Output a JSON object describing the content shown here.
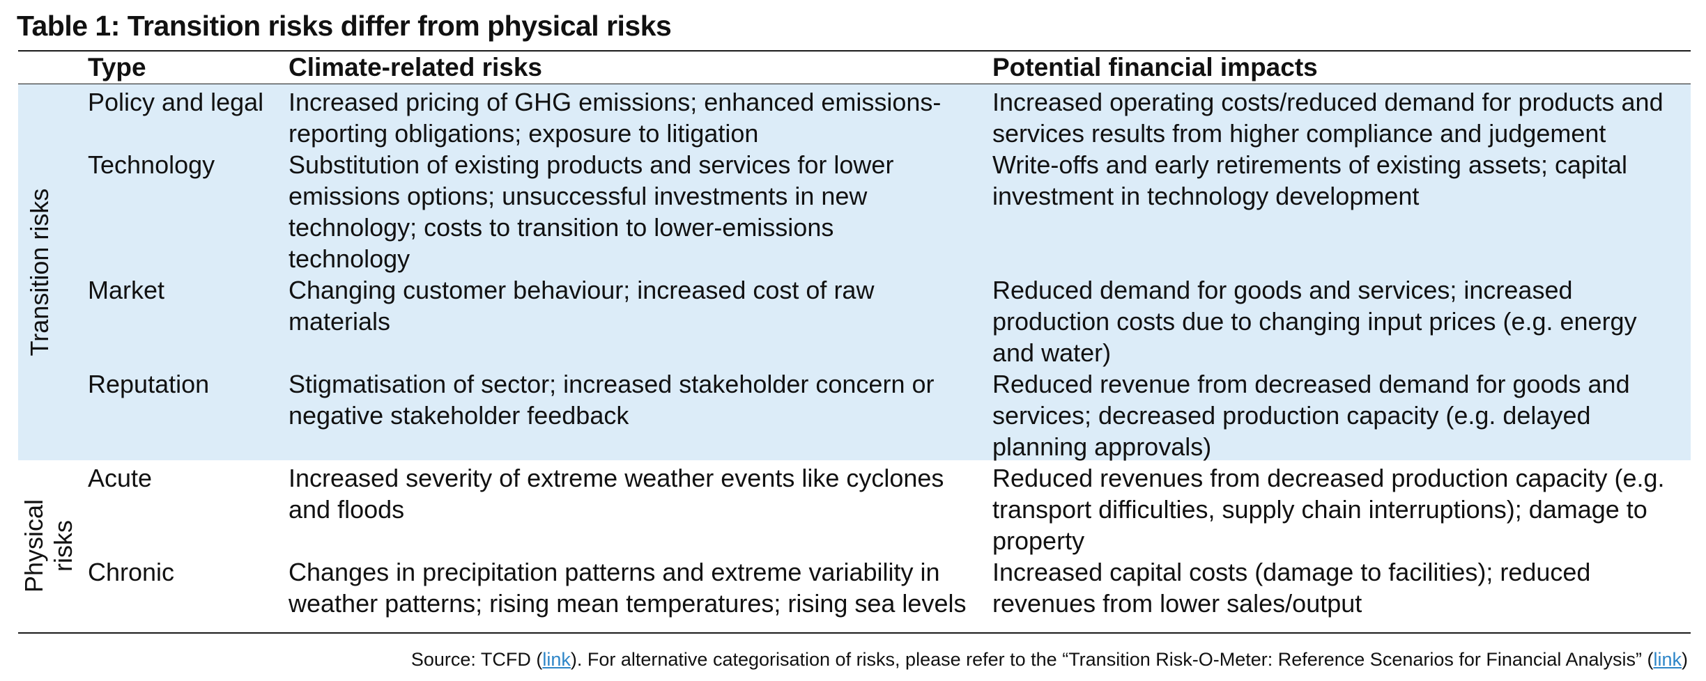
{
  "title": "Table 1: Transition risks differ from physical risks",
  "columns": {
    "type": "Type",
    "risks": "Climate-related risks",
    "impacts": "Potential financial impacts"
  },
  "groups": {
    "transition": "Transition risks",
    "physical_line1": "Physical",
    "physical_line2": "risks"
  },
  "rows": [
    {
      "type": "Policy and legal",
      "risks": [
        "Increased pricing of GHG emissions; enhanced emissions-",
        "reporting obligations; exposure to litigation"
      ],
      "impacts": [
        "Increased operating costs/reduced demand for products and",
        "services results from higher compliance and judgement"
      ]
    },
    {
      "type": "Technology",
      "risks": [
        "Substitution of existing products and services for lower",
        "emissions options; unsuccessful investments in new",
        "technology; costs to transition to lower-emissions",
        "technology"
      ],
      "impacts": [
        "Write-offs and early retirements of existing assets; capital",
        "investment in technology development"
      ]
    },
    {
      "type": "Market",
      "risks": [
        "Changing customer behaviour; increased cost of raw",
        "materials"
      ],
      "impacts": [
        "Reduced demand for goods and services; increased",
        "production costs due to changing input prices (e.g. energy",
        "and water)"
      ]
    },
    {
      "type": "Reputation",
      "risks": [
        "Stigmatisation of sector; increased stakeholder concern or",
        "negative stakeholder feedback"
      ],
      "impacts": [
        "Reduced revenue from decreased demand for goods and",
        "services; decreased production capacity (e.g. delayed",
        "planning approvals)"
      ]
    },
    {
      "type": "Acute",
      "risks": [
        "Increased severity of extreme weather events like cyclones",
        "and floods"
      ],
      "impacts": [
        "Reduced revenues from decreased production capacity (e.g.",
        "transport difficulties, supply chain interruptions); damage to",
        "property"
      ]
    },
    {
      "type": "Chronic",
      "risks": [
        "Changes in precipitation patterns and extreme variability in",
        "weather patterns; rising mean temperatures; rising sea levels"
      ],
      "impacts": [
        "Increased capital costs (damage to facilities); reduced",
        "revenues from lower sales/output"
      ]
    }
  ],
  "footer": {
    "prefix": "Source: TCFD (",
    "link1": "link",
    "middle": "). For alternative categorisation of risks, please refer to the “Transition Risk-O-Meter: Reference Scenarios for Financial Analysis” (",
    "link2": "link",
    "suffix": ")"
  }
}
